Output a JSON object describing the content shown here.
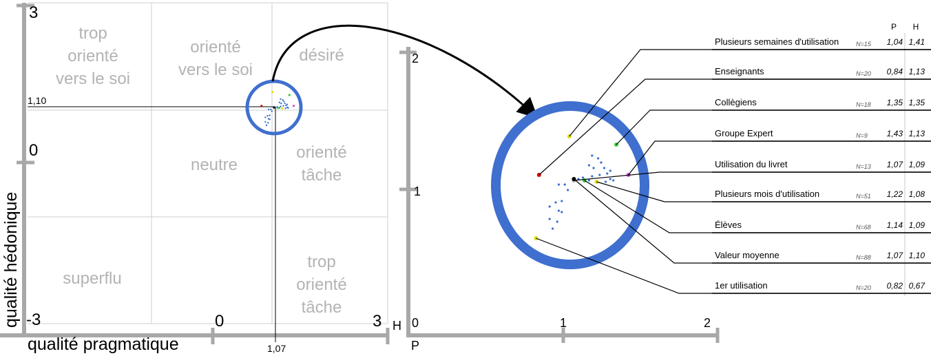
{
  "chart_data": [
    {
      "type": "scatter",
      "xlabel": "qualité pragmatique",
      "ylabel": "qualité hédonique",
      "xlim": [
        -3,
        3
      ],
      "ylim": [
        -3,
        3
      ],
      "x_tick_labels": [
        "0",
        "3"
      ],
      "y_tick_labels": [
        "3",
        "0",
        "-3"
      ],
      "h_axis_marker": "H",
      "grid": true,
      "zones": [
        {
          "lines": [
            "trop",
            "orienté",
            "vers le soi"
          ]
        },
        {
          "lines": [
            "orienté",
            "vers le soi"
          ]
        },
        {
          "lines": [
            "désiré"
          ]
        },
        {
          "lines": [
            "neutre"
          ]
        },
        {
          "lines": [
            "orienté",
            "tâche"
          ]
        },
        {
          "lines": [
            "superflu"
          ]
        },
        {
          "lines": [
            "trop",
            "orienté",
            "tâche"
          ]
        }
      ],
      "mean_point": {
        "x": 1.07,
        "y": 1.1,
        "x_label": "1,07",
        "y_label": "1,10"
      }
    },
    {
      "type": "scatter",
      "xlabel": "P",
      "ylabel": "H",
      "x_tick_labels": [
        "0",
        "1",
        "2"
      ],
      "y_tick_labels": [
        "2",
        "1"
      ],
      "xlim": [
        0,
        2
      ],
      "ylim": [
        0,
        2
      ],
      "table_headers": [
        "P",
        "H"
      ],
      "groups": [
        {
          "name": "Plusieurs semaines d'utilisation",
          "n": "N=15",
          "p": "1,04",
          "h": "1,41",
          "x": 1.04,
          "y": 1.41,
          "color": "#e0e000"
        },
        {
          "name": "Enseignants",
          "n": "N=20",
          "p": "0,84",
          "h": "1,13",
          "x": 0.84,
          "y": 1.13,
          "color": "#d40000"
        },
        {
          "name": "Collègiens",
          "n": "N=18",
          "p": "1,35",
          "h": "1,35",
          "x": 1.35,
          "y": 1.35,
          "color": "#33cc33"
        },
        {
          "name": "Groupe Expert",
          "n": "N=9",
          "p": "1,43",
          "h": "1,13",
          "x": 1.43,
          "y": 1.13,
          "color": "#e040e0"
        },
        {
          "name": "Utilisation du livret",
          "n": "N=13",
          "p": "1,07",
          "h": "1,09",
          "x": 1.07,
          "y": 1.09,
          "color": "#aaaaaa"
        },
        {
          "name": "Plusieurs mois d'utilisation",
          "n": "N=51",
          "p": "1,22",
          "h": "1,08",
          "x": 1.22,
          "y": 1.08,
          "color": "#e0e000"
        },
        {
          "name": "Élèves",
          "n": "N=68",
          "p": "1,14",
          "h": "1,09",
          "x": 1.14,
          "y": 1.09,
          "color": "#33cc33"
        },
        {
          "name": "Valeur moyenne",
          "n": "N=88",
          "p": "1,07",
          "h": "1,10",
          "x": 1.07,
          "y": 1.1,
          "color": "#000000"
        },
        {
          "name": "1er utilisation",
          "n": "N=20",
          "p": "0,82",
          "h": "0,67",
          "x": 0.82,
          "y": 0.67,
          "color": "#e0e000"
        }
      ],
      "individual_points": [
        {
          "x": 1.19,
          "y": 1.27
        },
        {
          "x": 1.23,
          "y": 1.25
        },
        {
          "x": 1.25,
          "y": 1.22
        },
        {
          "x": 1.17,
          "y": 1.2
        },
        {
          "x": 1.2,
          "y": 1.18
        },
        {
          "x": 1.27,
          "y": 1.18
        },
        {
          "x": 1.29,
          "y": 1.14
        },
        {
          "x": 1.31,
          "y": 1.16
        },
        {
          "x": 1.24,
          "y": 1.13
        },
        {
          "x": 1.19,
          "y": 1.12
        },
        {
          "x": 1.17,
          "y": 1.09
        },
        {
          "x": 1.28,
          "y": 1.08
        },
        {
          "x": 1.31,
          "y": 1.1
        },
        {
          "x": 1.33,
          "y": 1.09
        },
        {
          "x": 1.13,
          "y": 1.11
        },
        {
          "x": 1.1,
          "y": 1.1
        },
        {
          "x": 0.97,
          "y": 1.06
        },
        {
          "x": 1.01,
          "y": 1.06
        },
        {
          "x": 1.03,
          "y": 1.02
        },
        {
          "x": 0.95,
          "y": 0.93
        },
        {
          "x": 0.99,
          "y": 0.94
        },
        {
          "x": 0.91,
          "y": 0.9
        },
        {
          "x": 0.97,
          "y": 0.87
        },
        {
          "x": 0.99,
          "y": 0.86
        },
        {
          "x": 0.91,
          "y": 0.81
        },
        {
          "x": 0.96,
          "y": 0.79
        },
        {
          "x": 0.93,
          "y": 0.74
        }
      ]
    }
  ]
}
